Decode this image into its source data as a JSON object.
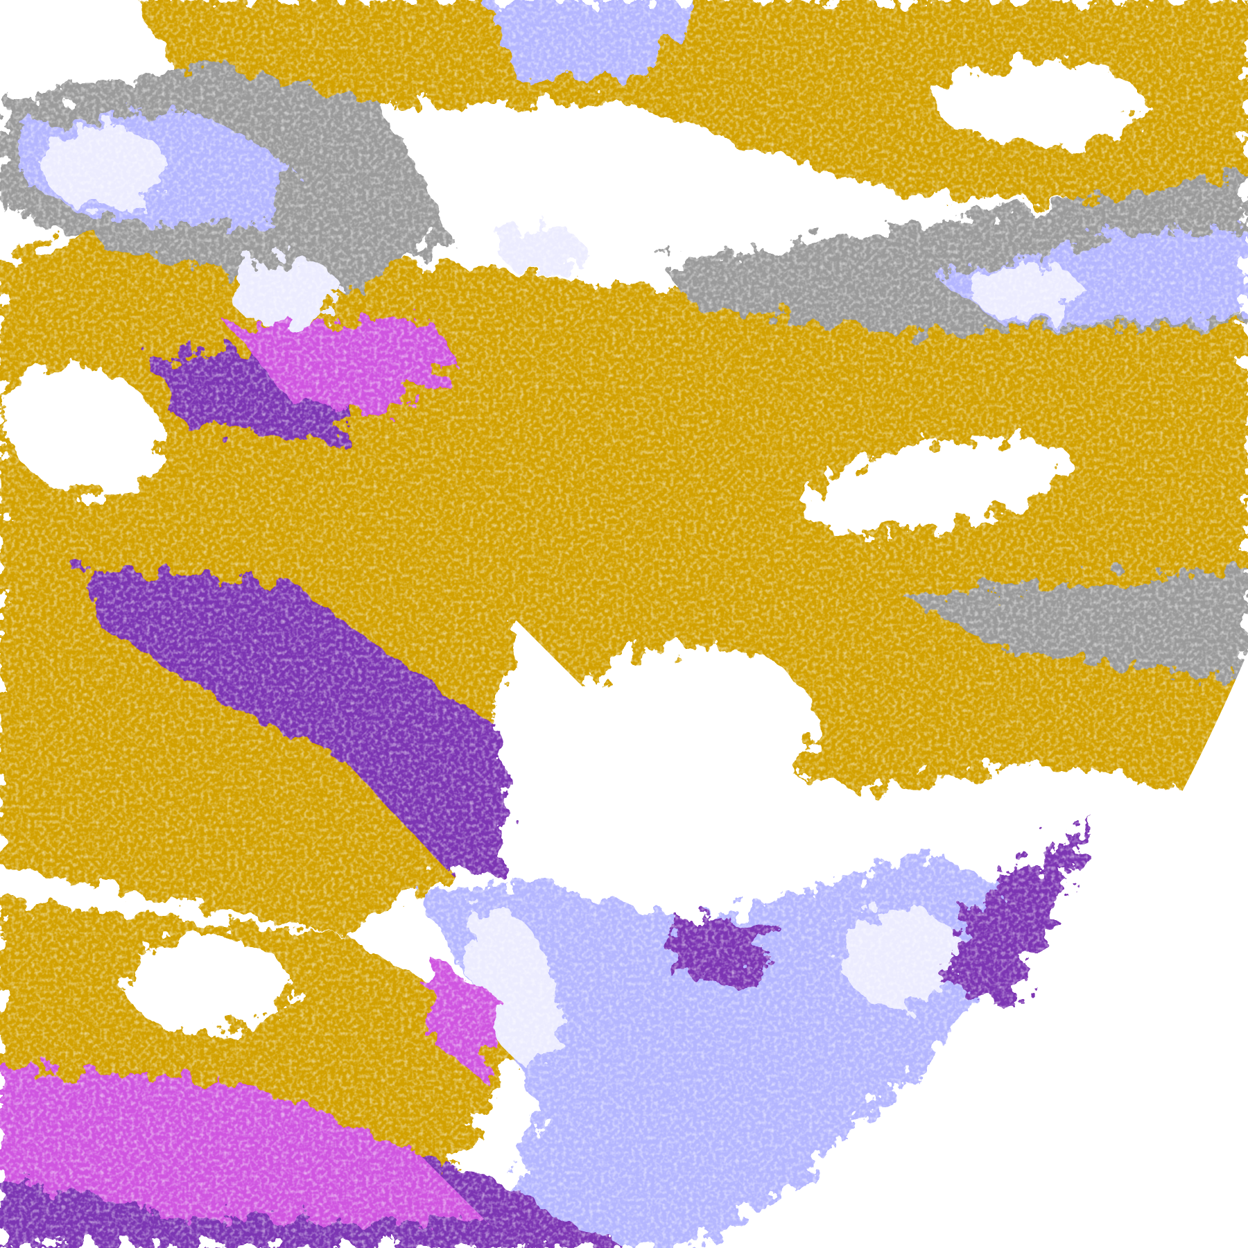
{
  "image": {
    "kind": "satellite false-color classification",
    "palette": {
      "background": "#ffffff",
      "gold": "#d2a106",
      "purple": "#7c34b3",
      "magenta": "#cf55e0",
      "lavender": "#b4b6ff",
      "pale": "#ececff",
      "gray": "#9a9a9a"
    },
    "disk_edge": "bottom-right"
  }
}
